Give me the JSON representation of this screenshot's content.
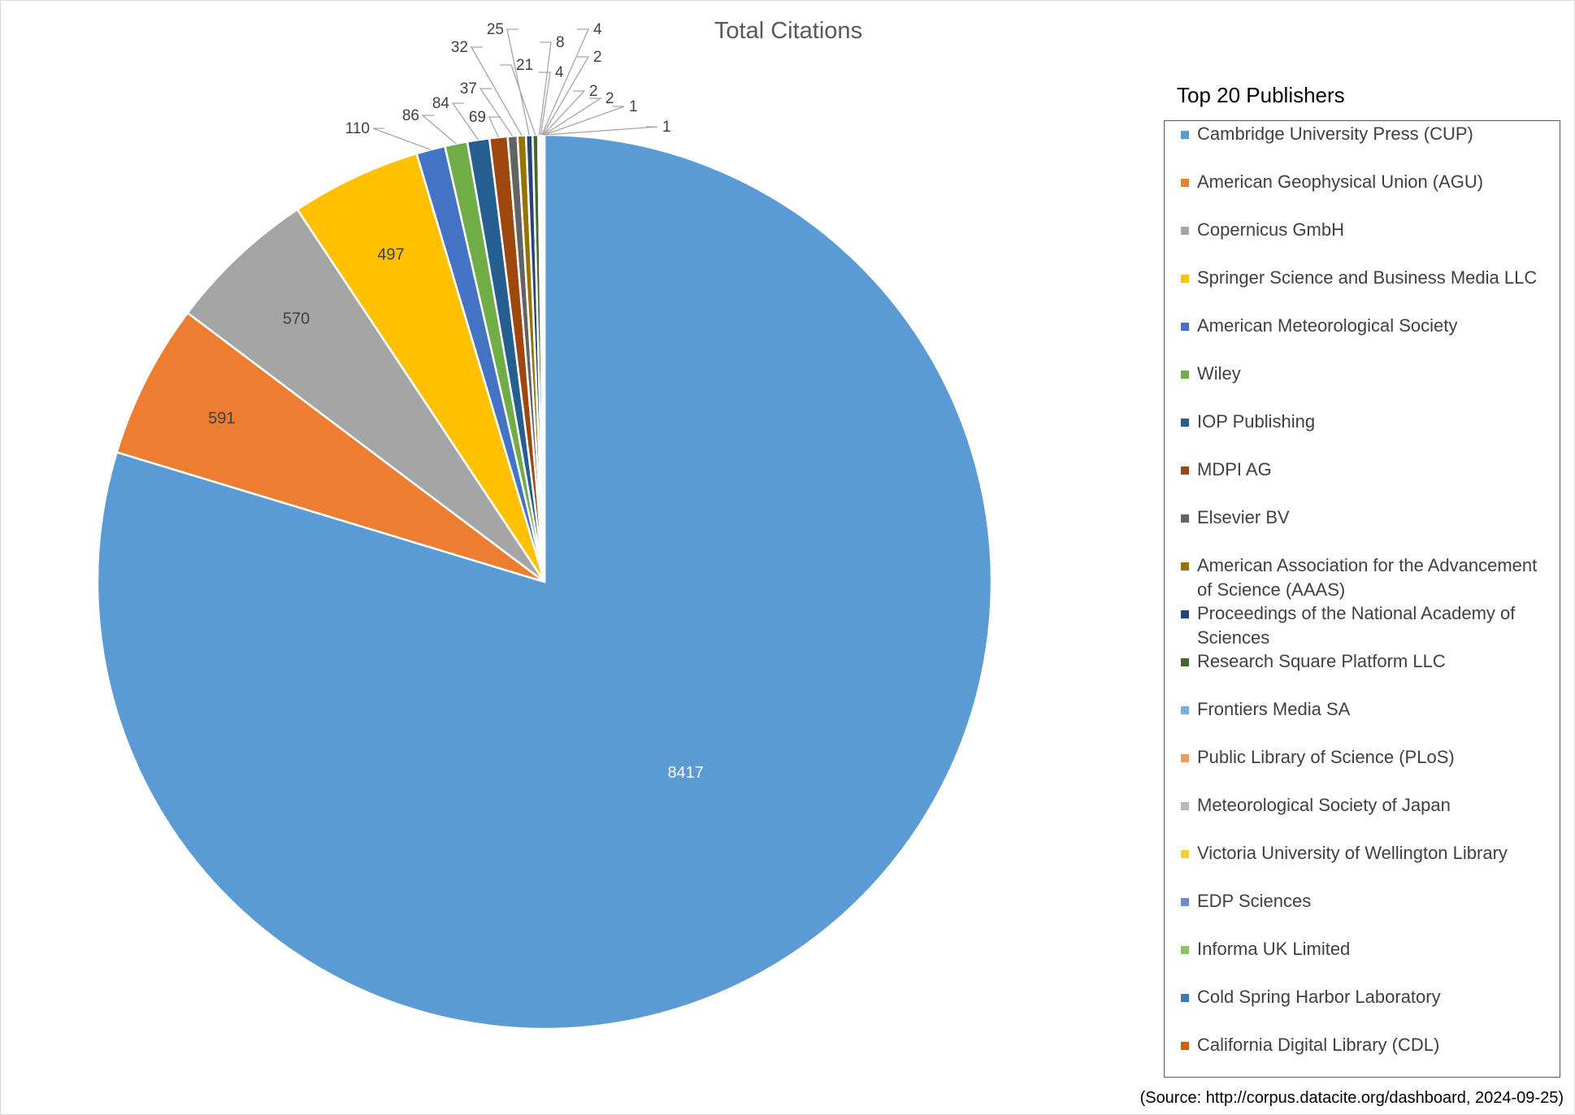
{
  "chart_data": {
    "type": "pie",
    "title": "Total Citations",
    "legend_title": "Top 20 Publishers",
    "legend_position": "right",
    "source_note": "(Source:  http://corpus.datacite.org/dashboard, 2024-09-25)",
    "slices": [
      {
        "label": "Cambridge University Press (CUP)",
        "value": 8417,
        "color": "#5B9BD5"
      },
      {
        "label": "American Geophysical Union (AGU)",
        "value": 591,
        "color": "#ED7D31"
      },
      {
        "label": "Copernicus GmbH",
        "value": 570,
        "color": "#A5A5A5"
      },
      {
        "label": "Springer Science and Business Media LLC",
        "value": 497,
        "color": "#FFC000"
      },
      {
        "label": "American Meteorological Society",
        "value": 110,
        "color": "#4472C4"
      },
      {
        "label": "Wiley",
        "value": 86,
        "color": "#70AD47"
      },
      {
        "label": "IOP Publishing",
        "value": 84,
        "color": "#255E91"
      },
      {
        "label": "MDPI AG",
        "value": 69,
        "color": "#9E480E"
      },
      {
        "label": "Elsevier BV",
        "value": 37,
        "color": "#636363"
      },
      {
        "label": "American Association for the Advancement of Science (AAAS)",
        "value": 32,
        "color": "#997300"
      },
      {
        "label": "Proceedings of the National Academy of Sciences",
        "value": 25,
        "color": "#264478"
      },
      {
        "label": "Research Square Platform LLC",
        "value": 21,
        "color": "#43682B"
      },
      {
        "label": "Frontiers Media SA",
        "value": 8,
        "color": "#7CAFDD"
      },
      {
        "label": "Public Library of Science (PLoS)",
        "value": 4,
        "color": "#F1975A"
      },
      {
        "label": "Meteorological Society of Japan",
        "value": 4,
        "color": "#B7B7B7"
      },
      {
        "label": "Victoria University of Wellington Library",
        "value": 2,
        "color": "#FFCD33"
      },
      {
        "label": "EDP Sciences",
        "value": 2,
        "color": "#698ED0"
      },
      {
        "label": "Informa UK Limited",
        "value": 2,
        "color": "#8CC168"
      },
      {
        "label": "Cold Spring Harbor Laboratory",
        "value": 1,
        "color": "#327DC2"
      },
      {
        "label": "California Digital Library (CDL)",
        "value": 1,
        "color": "#D26012"
      }
    ]
  }
}
